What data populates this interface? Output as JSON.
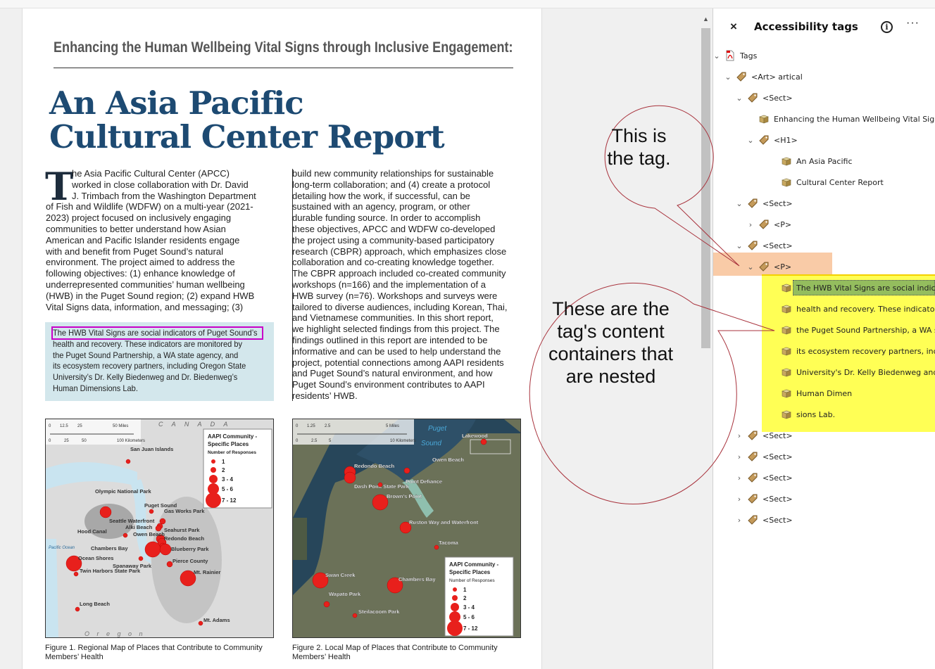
{
  "document": {
    "kicker": "Enhancing the Human Wellbeing Vital Signs through Inclusive Engagement:",
    "title_lines": [
      "An Asia Pacific",
      "Cultural Center Report"
    ],
    "drop_cap": "T",
    "left_column": [
      "he Asia Pacific Cultural Center (APCC)",
      "worked in close collaboration with Dr. David",
      "J. Trimbach from the Washington Department",
      "of Fish and Wildlife (WDFW) on a multi-year (2021-",
      "2023) project focused on inclusively engaging",
      "communities to better understand how Asian",
      "American and Pacific Islander residents engage",
      "with and benefit from Puget Sound’s natural",
      "environment. The project aimed to address the",
      "following objectives: (1) enhance knowledge of",
      "underrepresented communities’ human wellbeing",
      "(HWB) in the Puget Sound region; (2) expand HWB",
      "Vital Signs data, information, and messaging; (3)"
    ],
    "right_column": [
      "build new community relationships for sustainable",
      "long-term collaboration; and (4) create a protocol",
      "detailing how the work, if successful, can be",
      "sustained with an agency, program, or other",
      "durable funding source. In order to accomplish",
      "these objectives, APCC and WDFW co-developed",
      "the project using a community-based participatory",
      "research (CBPR) approach, which emphasizes close",
      "collaboration and co-creating knowledge together.",
      "The CBPR approach included co-created community",
      "workshops (n=166) and the implementation of a",
      "HWB survey (n=76). Workshops and surveys were",
      "tailored to diverse audiences, including Korean, Thai,",
      "and Vietnamese communities. In this short report,",
      "we highlight selected findings from this project. The",
      "findings outlined in this report are intended to be",
      "informative and can be used to help understand the",
      "project, potential connections among AAPI residents",
      "and Puget Sound’s natural environment, and how",
      "Puget Sound’s environment contributes to AAPI",
      "residents’ HWB."
    ],
    "info_box": [
      "The HWB Vital Signs are social indicators of Puget Sound’s",
      "health and recovery. These indicators are monitored by",
      "the Puget Sound Partnership, a WA state agency, and",
      "its ecosystem recovery partners, including Oregon State",
      "University’s Dr. Kelly Biedenweg and Dr. Biedenweg’s",
      "Human Dimensions Lab."
    ],
    "legend": {
      "title1": "AAPI Community -",
      "title2": "Specific Places",
      "subtitle": "Number of Responses",
      "classes": [
        "1",
        "2",
        "3 - 4",
        "5 - 6",
        "7 - 12"
      ]
    },
    "map1": {
      "scale_top": [
        "0",
        "12.5",
        "25",
        "50 Miles"
      ],
      "scale_bottom": [
        "0",
        "25",
        "50",
        "100 Kilometers"
      ],
      "region_labels": [
        "C A N A D A",
        "Pacific Ocean",
        "O r e g o n"
      ],
      "places": [
        "San Juan Islands",
        "Olympic National Park",
        "Puget Sound",
        "Gas Works Park",
        "Seattle Waterfront",
        "Alki Beach",
        "Hood Canal",
        "Owen Beach",
        "Seahurst Park",
        "Redondo Beach",
        "Chambers Bay",
        "Blueberry Park",
        "Ocean Shores",
        "Spanaway Park",
        "Pierce County",
        "Twin Harbors State Park",
        "Mt. Rainier",
        "Long Beach",
        "Mt. Adams"
      ],
      "caption": "Figure 1. Regional Map of Places that Contribute to Community Members’ Health"
    },
    "map2": {
      "scale_top": [
        "0",
        "1.25",
        "2.5",
        "5 Miles"
      ],
      "scale_bottom": [
        "0",
        "2.5",
        "5",
        "10 Kilometers"
      ],
      "region_labels": [
        "Puget",
        "Sound"
      ],
      "places": [
        "Redondo Beach",
        "Dash Point State Park",
        "Owen Beach",
        "Point Defiance",
        "Brown's Point",
        "Ruston Way and Waterfront",
        "Tacoma",
        "Swan Creek",
        "Chambers Bay",
        "Wapato Park",
        "Steilacoom Park",
        "Lakewood"
      ],
      "caption": "Figure 2. Local Map of Places that Contribute to Community Members’ Health"
    }
  },
  "panel": {
    "title": "Accessibility tags",
    "close": "×",
    "info": "i",
    "more": "···",
    "tree": [
      {
        "label": "Tags",
        "kind": "pdf",
        "chev": "down"
      },
      {
        "label": "<Art> artical",
        "kind": "tag",
        "chev": "down"
      },
      {
        "label": "<Sect>",
        "kind": "tag",
        "chev": "down"
      },
      {
        "label": "Enhancing the Human Wellbeing Vital Signs",
        "kind": "box"
      },
      {
        "label": "<H1>",
        "kind": "tag",
        "chev": "down"
      },
      {
        "label": "An Asia Pacific",
        "kind": "box"
      },
      {
        "label": "Cultural Center Report",
        "kind": "box"
      },
      {
        "label": "<Sect>",
        "kind": "tag",
        "chev": "down"
      },
      {
        "label": "<P>",
        "kind": "tag",
        "chev": "right"
      },
      {
        "label": "<Sect>",
        "kind": "tag",
        "chev": "down"
      },
      {
        "label": "<P>",
        "kind": "tag",
        "chev": "down"
      },
      {
        "label": "The HWB Vital Signs are social indicators",
        "kind": "box",
        "selected": true
      },
      {
        "label": "health and recovery. These indicators are",
        "kind": "box"
      },
      {
        "label": "the Puget Sound Partnership, a WA state",
        "kind": "box"
      },
      {
        "label": "its ecosystem recovery partners, includir",
        "kind": "box"
      },
      {
        "label": "University's Dr. Kelly Biedenweg and Dr.",
        "kind": "box"
      },
      {
        "label": "Human Dimen",
        "kind": "box"
      },
      {
        "label": "sions Lab.",
        "kind": "box"
      },
      {
        "label": "<Sect>",
        "kind": "tag",
        "chev": "right"
      },
      {
        "label": "<Sect>",
        "kind": "tag",
        "chev": "right"
      },
      {
        "label": "<Sect>",
        "kind": "tag",
        "chev": "right"
      },
      {
        "label": "<Sect>",
        "kind": "tag",
        "chev": "right"
      },
      {
        "label": "<Sect>",
        "kind": "tag",
        "chev": "right"
      }
    ]
  },
  "callouts": {
    "tag": [
      "This is",
      "the tag."
    ],
    "containers": [
      "These are the",
      "tag's content",
      "containers that",
      "are nested"
    ]
  },
  "colors": {
    "heading": "#1d4a72",
    "highlight_orange": "#f9cba7",
    "highlight_yellow": "#ffff55",
    "selected_green": "#94bd5e",
    "callout_stroke": "#a8323c",
    "marker_red": "#e8201c",
    "magenta_box": "#c800c8"
  }
}
